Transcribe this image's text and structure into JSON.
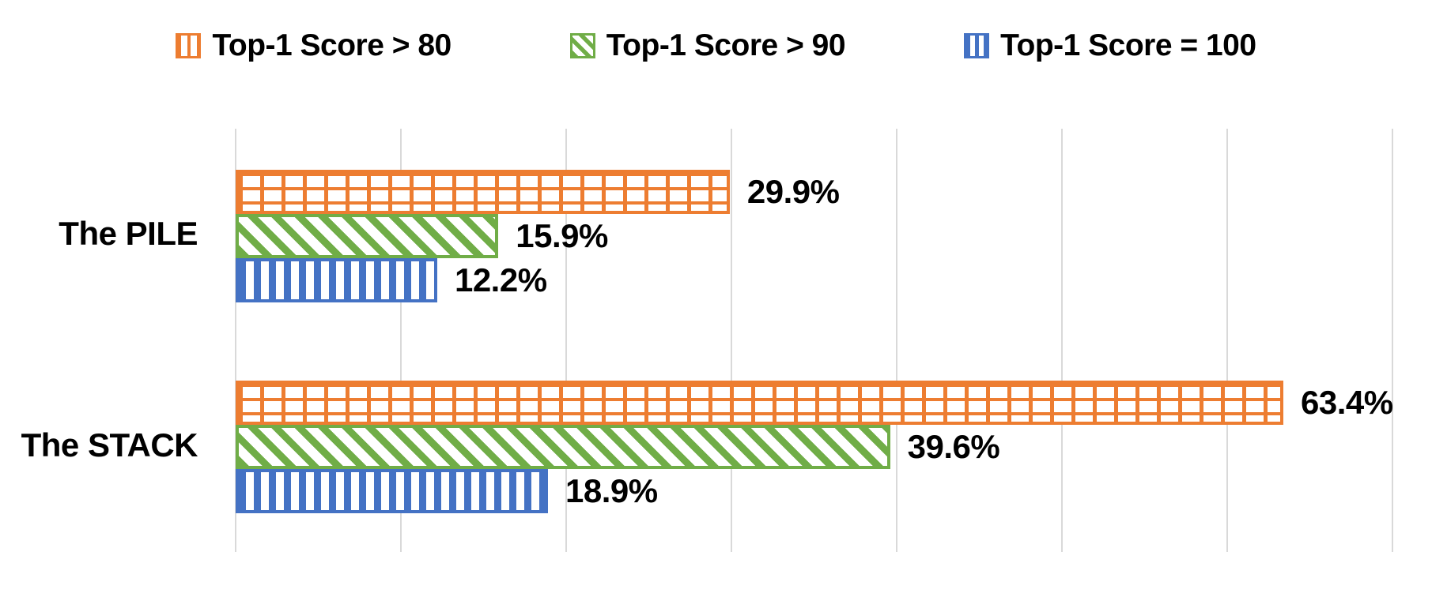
{
  "chart_data": {
    "type": "bar",
    "orientation": "horizontal",
    "title": "",
    "xlabel": "",
    "ylabel": "",
    "categories": [
      "The PILE",
      "The STACK"
    ],
    "series": [
      {
        "name": "Top-1 Score > 80",
        "pattern": "grid",
        "color": "#ED7D31",
        "values": [
          29.9,
          63.4
        ],
        "labels": [
          "29.9%",
          "63.4%"
        ]
      },
      {
        "name": "Top-1 Score > 90",
        "pattern": "diagonal",
        "color": "#70AD47",
        "values": [
          15.9,
          39.6
        ],
        "labels": [
          "15.9%",
          "39.6%"
        ]
      },
      {
        "name": "Top-1 Score = 100",
        "pattern": "vertical",
        "color": "#4472C4",
        "values": [
          12.2,
          18.9
        ],
        "labels": [
          "12.2%",
          "18.9%"
        ]
      }
    ],
    "xlim": [
      0,
      70
    ],
    "gridline_step": 10,
    "grid": true,
    "legend_position": "top",
    "gridline_color": "#D9D9D9",
    "text_color": "#000000",
    "background_color": "#FFFFFF"
  }
}
